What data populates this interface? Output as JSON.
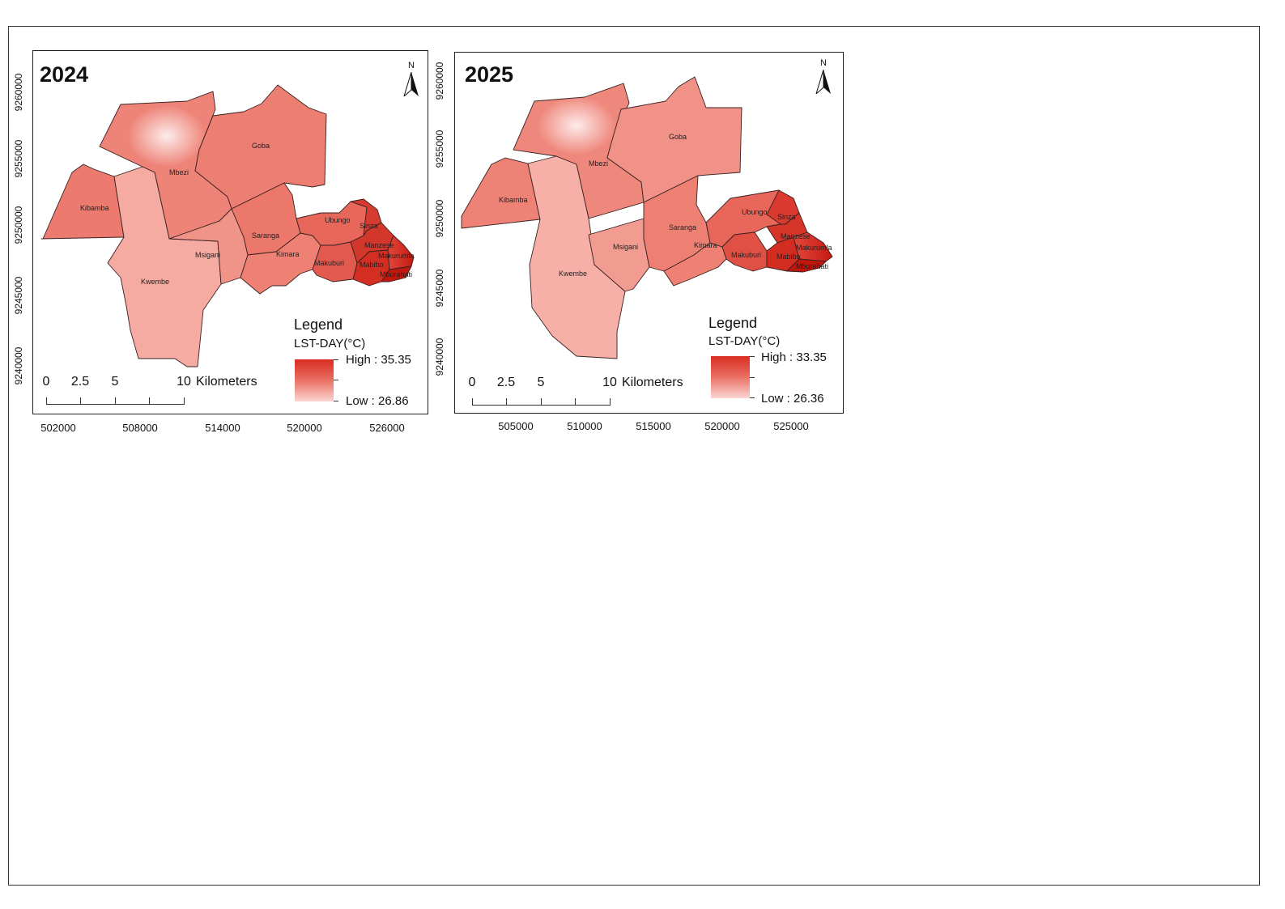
{
  "panels": [
    {
      "year": "2024",
      "north_label": "N",
      "y_ticks": [
        "9260000",
        "9255000",
        "9250000",
        "9245000",
        "9240000"
      ],
      "x_ticks": [
        "502000",
        "508000",
        "514000",
        "520000",
        "526000"
      ],
      "legend": {
        "title": "Legend",
        "subtitle": "LST-DAY(°C)",
        "high": "High : 35.35",
        "low": "Low : 26.86"
      },
      "scalebar": {
        "ticks": [
          "0",
          "2.5",
          "5",
          "10"
        ],
        "unit": "Kilometers"
      },
      "wards": [
        "Kibamba",
        "Mbezi",
        "Goba",
        "Kwembe",
        "Msigani",
        "Saranga",
        "Kimara",
        "Ubungo",
        "Makuburi",
        "Sinza",
        "Manzese",
        "Mabibo",
        "Makurumla",
        "Mburahati"
      ]
    },
    {
      "year": "2025",
      "north_label": "N",
      "y_ticks": [
        "9260000",
        "9255000",
        "9250000",
        "9245000",
        "9240000"
      ],
      "x_ticks": [
        "505000",
        "510000",
        "515000",
        "520000",
        "525000"
      ],
      "legend": {
        "title": "Legend",
        "subtitle": "LST-DAY(°C)",
        "high": "High : 33.35",
        "low": "Low : 26.36"
      },
      "scalebar": {
        "ticks": [
          "0",
          "2.5",
          "5",
          "10"
        ],
        "unit": "Kilometers"
      },
      "wards": [
        "Kibamba",
        "Mbezi",
        "Goba",
        "Kwembe",
        "Msigani",
        "Saranga",
        "Kimara",
        "Ubungo",
        "Makuburi",
        "Sinza",
        "Manzese",
        "Mabibo",
        "Makurumla",
        "Mburahati"
      ]
    }
  ],
  "colors": {
    "ramp_high": "#d92d22",
    "ramp_low": "#fbd6d2",
    "ward_fill": "#ec7a6e",
    "ward_fill_light": "#f5aaa2",
    "ward_fill_dark": "#d8261c"
  }
}
